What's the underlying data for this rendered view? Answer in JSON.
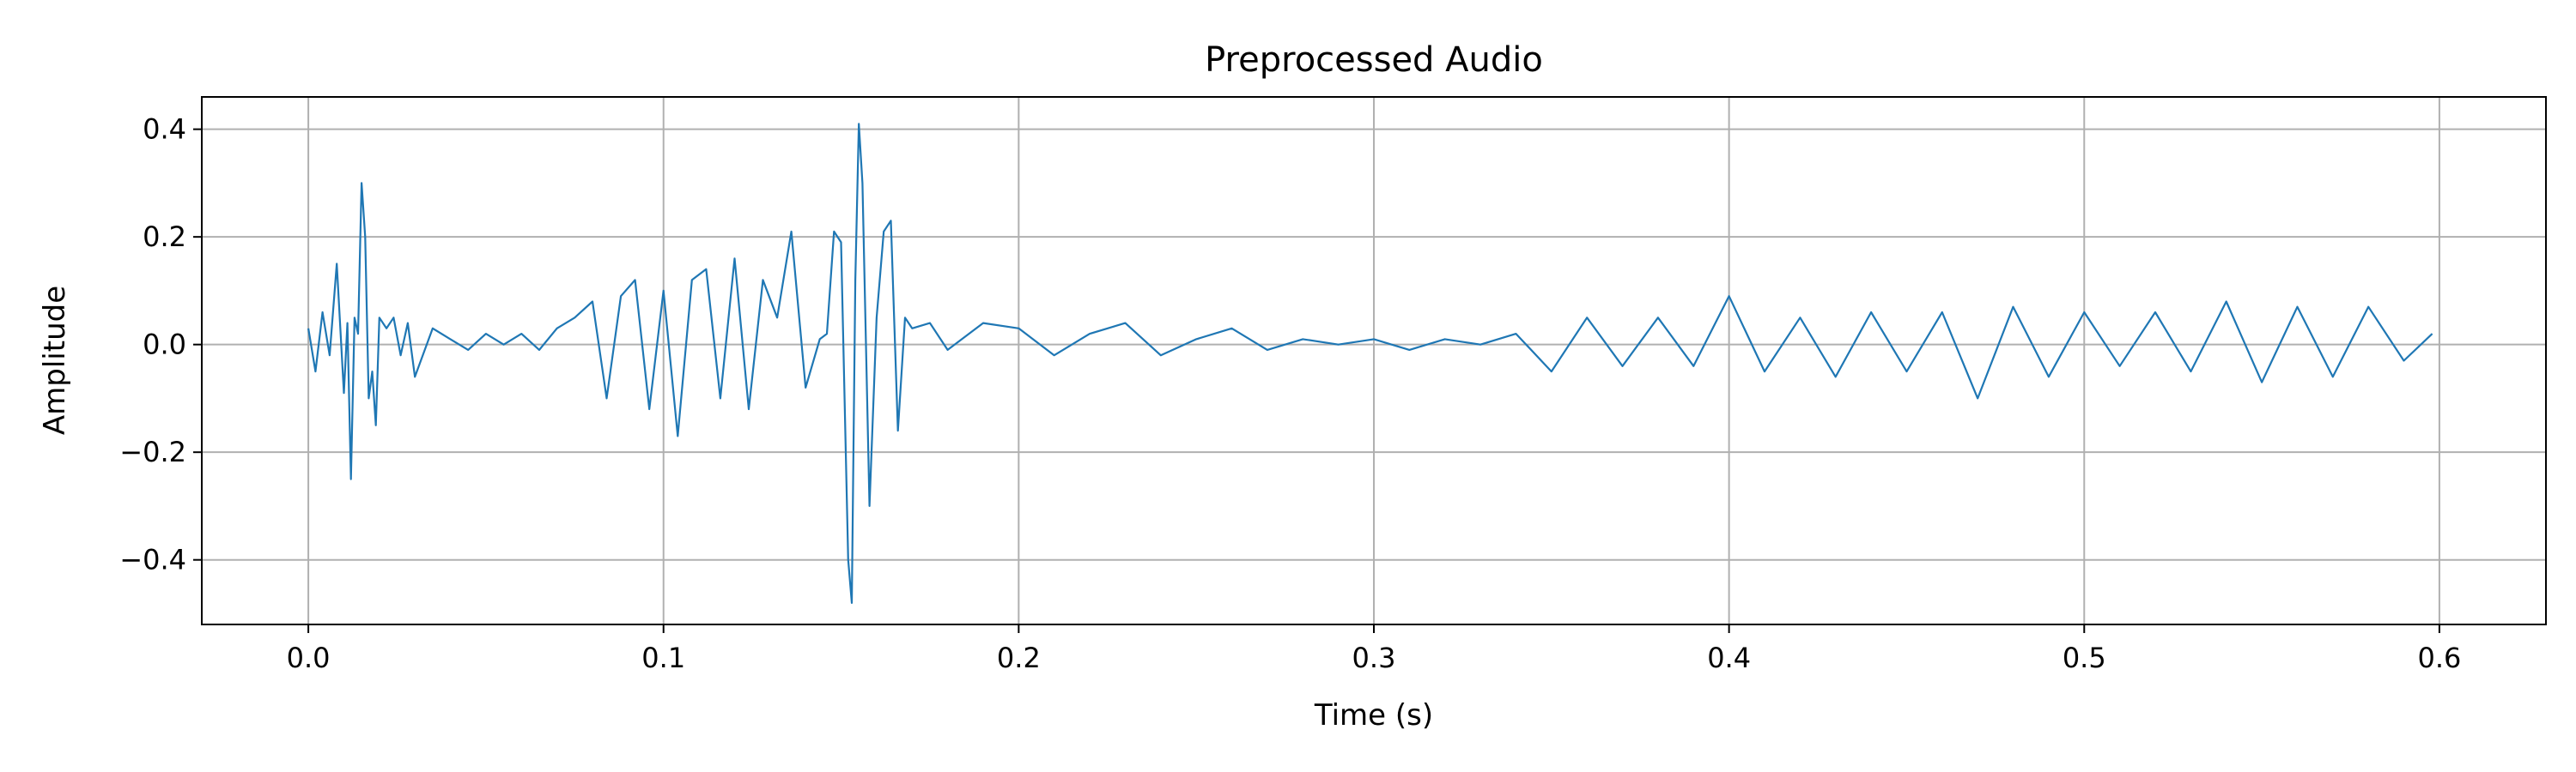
{
  "chart_data": {
    "type": "line",
    "title": "Preprocessed Audio",
    "xlabel": "Time (s)",
    "ylabel": "Amplitude",
    "xlim": [
      -0.03,
      0.63
    ],
    "ylim": [
      -0.52,
      0.46
    ],
    "xticks": [
      0.0,
      0.1,
      0.2,
      0.3,
      0.4,
      0.5,
      0.6
    ],
    "xtick_labels": [
      "0.0",
      "0.1",
      "0.2",
      "0.3",
      "0.4",
      "0.5",
      "0.6"
    ],
    "yticks": [
      -0.4,
      -0.2,
      0.0,
      0.2,
      0.4
    ],
    "ytick_labels": [
      "−0.4",
      "−0.2",
      "0.0",
      "0.2",
      "0.4"
    ],
    "grid": true,
    "legend": "none",
    "line_color": "#1f77b4",
    "grid_color": "#b0b0b0",
    "series": [
      {
        "x": [
          0.0,
          0.002,
          0.004,
          0.006,
          0.008,
          0.01,
          0.011,
          0.012,
          0.013,
          0.014,
          0.015,
          0.016,
          0.017,
          0.018,
          0.019,
          0.02,
          0.022,
          0.024,
          0.026,
          0.028,
          0.03,
          0.035,
          0.04,
          0.045,
          0.05,
          0.055,
          0.06,
          0.065,
          0.07,
          0.075,
          0.08,
          0.084,
          0.088,
          0.092,
          0.096,
          0.1,
          0.104,
          0.108,
          0.112,
          0.116,
          0.12,
          0.124,
          0.128,
          0.132,
          0.136,
          0.14,
          0.144,
          0.146,
          0.148,
          0.15,
          0.152,
          0.153,
          0.154,
          0.155,
          0.156,
          0.158,
          0.16,
          0.162,
          0.164,
          0.166,
          0.168,
          0.17,
          0.175,
          0.18,
          0.19,
          0.2,
          0.21,
          0.22,
          0.23,
          0.24,
          0.25,
          0.26,
          0.27,
          0.28,
          0.29,
          0.3,
          0.31,
          0.32,
          0.33,
          0.34,
          0.35,
          0.36,
          0.37,
          0.38,
          0.39,
          0.4,
          0.41,
          0.42,
          0.43,
          0.44,
          0.45,
          0.46,
          0.47,
          0.48,
          0.49,
          0.5,
          0.51,
          0.52,
          0.53,
          0.54,
          0.55,
          0.56,
          0.57,
          0.58,
          0.59,
          0.598
        ],
        "y": [
          0.03,
          -0.05,
          0.06,
          -0.02,
          0.15,
          -0.09,
          0.04,
          -0.25,
          0.05,
          0.02,
          0.3,
          0.2,
          -0.1,
          -0.05,
          -0.15,
          0.05,
          0.03,
          0.05,
          -0.02,
          0.04,
          -0.06,
          0.03,
          0.01,
          -0.01,
          0.02,
          0.0,
          0.02,
          -0.01,
          0.03,
          0.05,
          0.08,
          -0.1,
          0.09,
          0.12,
          -0.12,
          0.1,
          -0.17,
          0.12,
          0.14,
          -0.1,
          0.16,
          -0.12,
          0.12,
          0.05,
          0.21,
          -0.08,
          0.01,
          0.02,
          0.21,
          0.19,
          -0.4,
          -0.48,
          0.12,
          0.41,
          0.3,
          -0.3,
          0.05,
          0.21,
          0.23,
          -0.16,
          0.05,
          0.03,
          0.04,
          -0.01,
          0.04,
          0.03,
          -0.02,
          0.02,
          0.04,
          -0.02,
          0.01,
          0.03,
          -0.01,
          0.01,
          0.0,
          0.01,
          -0.01,
          0.01,
          0.0,
          0.02,
          -0.05,
          0.05,
          -0.04,
          0.05,
          -0.04,
          0.09,
          -0.05,
          0.05,
          -0.06,
          0.06,
          -0.05,
          0.06,
          -0.1,
          0.07,
          -0.06,
          0.06,
          -0.04,
          0.06,
          -0.05,
          0.08,
          -0.07,
          0.07,
          -0.06,
          0.07,
          -0.03,
          0.02
        ]
      }
    ]
  }
}
